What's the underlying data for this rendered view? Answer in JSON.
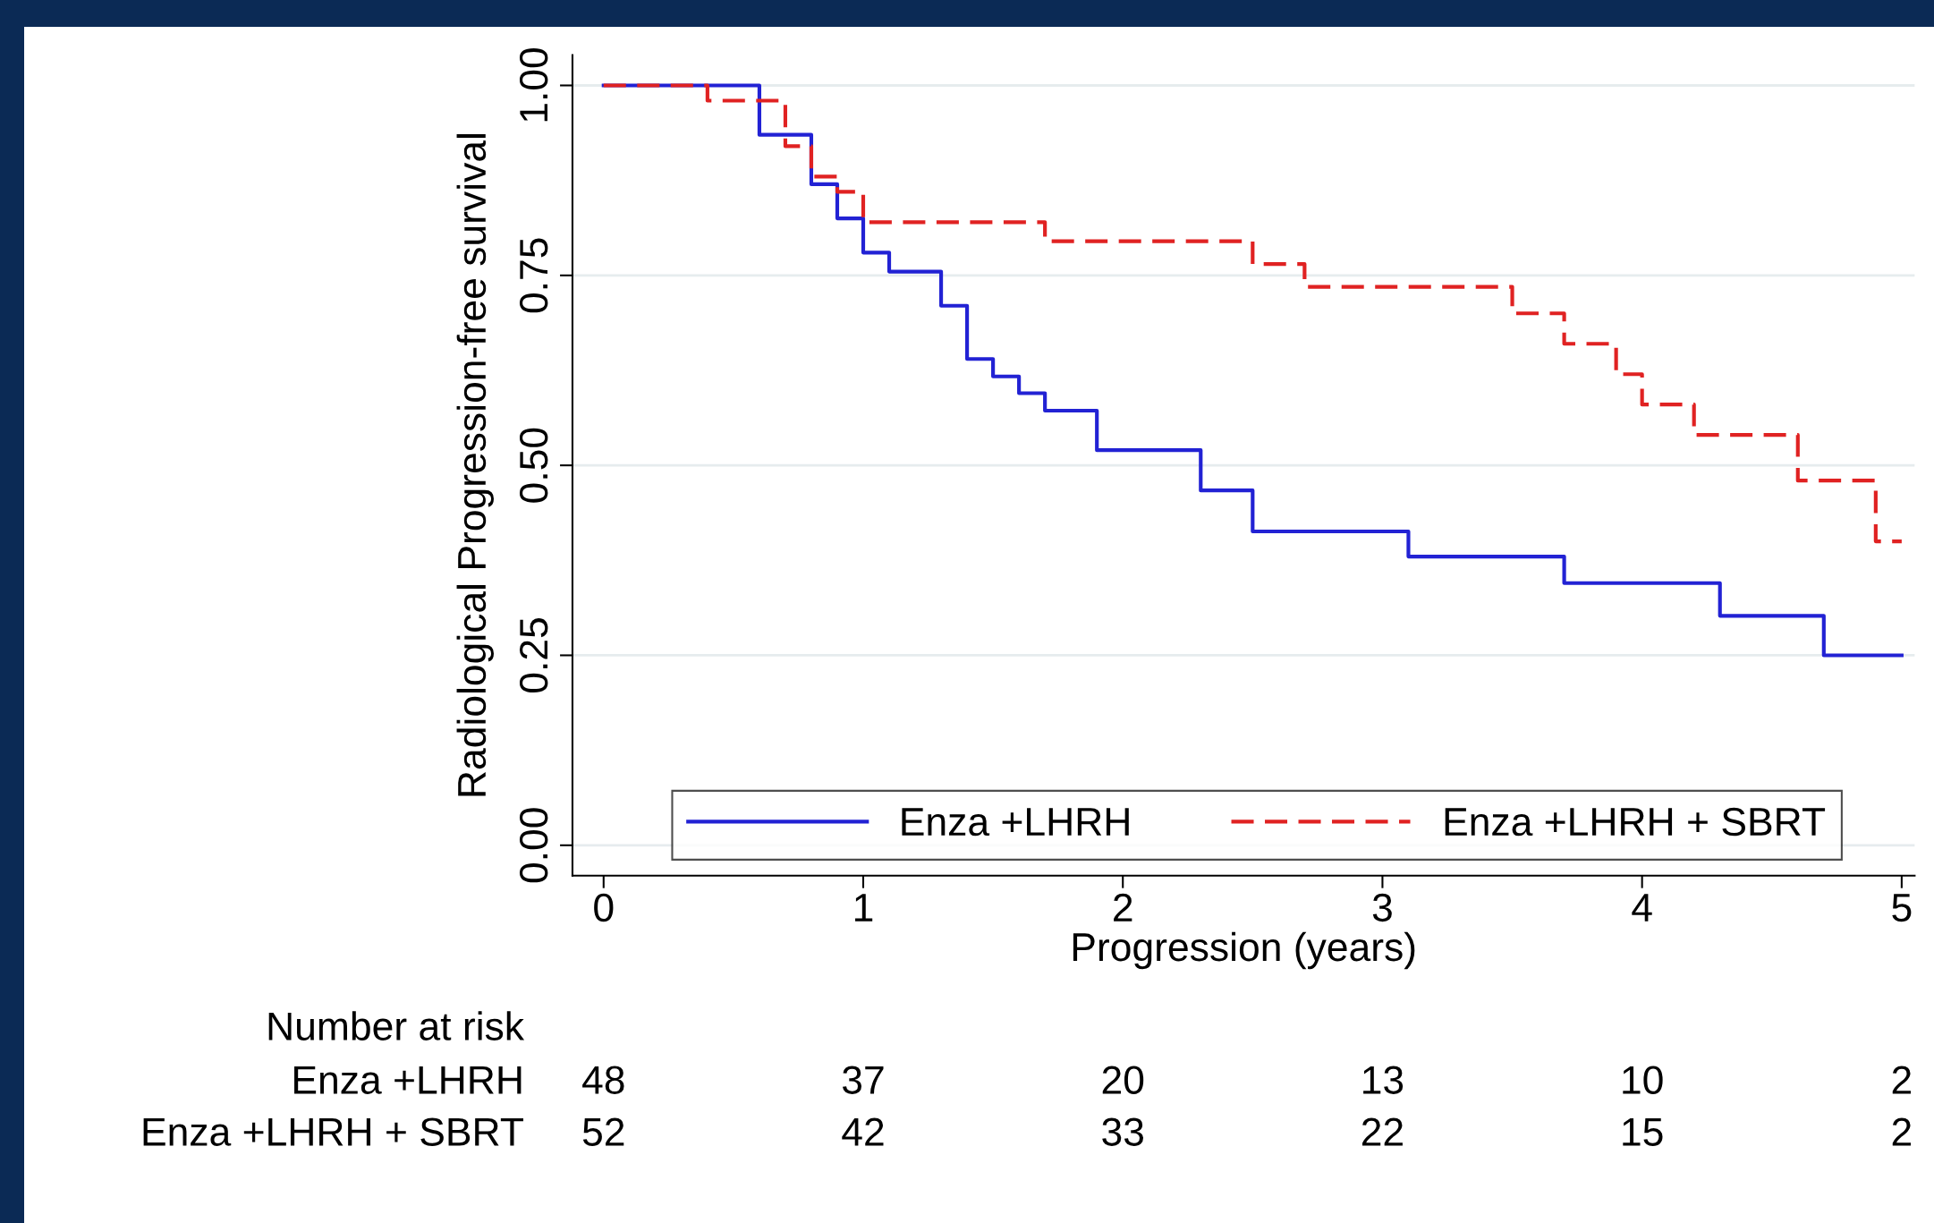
{
  "chart_data": {
    "type": "step",
    "xlabel": "Progression (years)",
    "ylabel": "Radiological Progression-free survival",
    "series": [
      {
        "name": "Enza +LHRH",
        "color": "#2222d4",
        "line_style": "solid",
        "x": [
          0,
          0.6,
          0.8,
          0.9,
          1.0,
          1.1,
          1.3,
          1.4,
          1.5,
          1.6,
          1.7,
          1.9,
          2.3,
          2.5,
          3.1,
          3.7,
          4.3,
          4.7,
          5.0
        ],
        "values": [
          1.0,
          0.935,
          0.87,
          0.825,
          0.78,
          0.755,
          0.71,
          0.64,
          0.617,
          0.595,
          0.572,
          0.52,
          0.467,
          0.413,
          0.38,
          0.345,
          0.302,
          0.25,
          0.25
        ]
      },
      {
        "name": "Enza +LHRH + SBRT",
        "color": "#e02222",
        "line_style": "dashed",
        "x": [
          0,
          0.4,
          0.7,
          0.8,
          0.9,
          1.0,
          1.7,
          2.5,
          2.7,
          3.5,
          3.7,
          3.9,
          4.0,
          4.2,
          4.6,
          4.9,
          5.0
        ],
        "values": [
          1.0,
          0.98,
          0.92,
          0.88,
          0.86,
          0.82,
          0.795,
          0.765,
          0.735,
          0.7,
          0.66,
          0.62,
          0.58,
          0.54,
          0.48,
          0.4,
          0.4
        ]
      }
    ],
    "xlim": [
      -0.12,
      5.05
    ],
    "xticks": [
      0,
      1,
      2,
      3,
      4,
      5
    ],
    "ylim": [
      -0.04,
      1.04
    ],
    "yticks": [
      {
        "value": 0,
        "label": "0.00"
      },
      {
        "value": 0.25,
        "label": "0.25"
      },
      {
        "value": 0.5,
        "label": "0.50"
      },
      {
        "value": 0.75,
        "label": "0.75"
      },
      {
        "value": 1.0,
        "label": "1.00"
      }
    ],
    "grid": "y",
    "legend": "bottom",
    "annotations": [
      "Number at risk",
      "Enza +LHRH",
      "48",
      "37",
      "20",
      "13",
      "10",
      "2",
      "Enza +LHRH + SBRT",
      "52",
      "42",
      "33",
      "22",
      "15",
      "2"
    ]
  }
}
